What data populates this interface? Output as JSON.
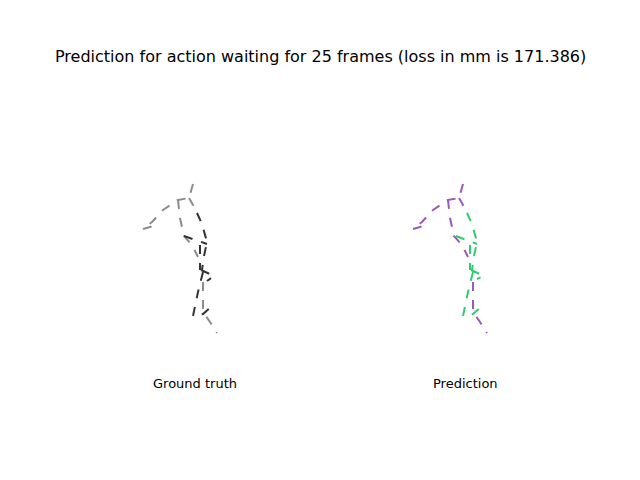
{
  "title": "Prediction for action waiting for 25 frames (loss in mm is 171.386)",
  "chart_data": [
    {
      "type": "line",
      "title": "Ground truth",
      "grid": false,
      "tick_labels": false,
      "xlim": [
        100,
        290
      ],
      "ylim": [
        345,
        170
      ],
      "series": [
        {
          "color": "#8c8c8c",
          "line_style": "dash",
          "x": [
            193,
            189,
            178,
            163,
            152,
            143,
            null,
            143,
            150,
            160,
            null,
            189,
            197,
            null,
            178,
            180,
            184,
            192,
            198,
            null,
            203,
            203,
            210,
            217
          ],
          "y": [
            184,
            198,
            200,
            210,
            222,
            229,
            null,
            229,
            227,
            223,
            null,
            198,
            212,
            null,
            200,
            218,
            236,
            245,
            257,
            null,
            282,
            312,
            322,
            333
          ]
        },
        {
          "color": "#333333",
          "line_style": "dash",
          "x": [
            197,
            202,
            207,
            204,
            202,
            null,
            184,
            207,
            null,
            201,
            214,
            207,
            null,
            203,
            198,
            193,
            203,
            212,
            null,
            200,
            200
          ],
          "y": [
            213,
            224,
            242,
            256,
            270,
            null,
            236,
            244,
            null,
            270,
            276,
            281,
            null,
            272,
            292,
            316,
            314,
            306,
            null,
            245,
            270
          ]
        }
      ]
    },
    {
      "type": "line",
      "title": "Prediction",
      "grid": false,
      "tick_labels": false,
      "xlim": [
        370,
        560
      ],
      "ylim": [
        345,
        170
      ],
      "series": [
        {
          "color": "#9b59b6",
          "line_style": "dash",
          "x": [
            463,
            459,
            448,
            433,
            422,
            413,
            null,
            413,
            420,
            430,
            null,
            459,
            467,
            null,
            448,
            450,
            454,
            462,
            468,
            null,
            473,
            473,
            480,
            487
          ],
          "y": [
            184,
            198,
            200,
            210,
            222,
            229,
            null,
            229,
            227,
            223,
            null,
            198,
            212,
            null,
            200,
            218,
            236,
            245,
            257,
            null,
            282,
            312,
            322,
            333
          ]
        },
        {
          "color": "#2ecc71",
          "line_style": "dash",
          "x": [
            467,
            472,
            477,
            474,
            472,
            null,
            456,
            477,
            null,
            471,
            484,
            477,
            null,
            473,
            468,
            463,
            473,
            482,
            null,
            470,
            470
          ],
          "y": [
            213,
            224,
            242,
            256,
            270,
            null,
            236,
            244,
            null,
            270,
            276,
            279,
            null,
            272,
            292,
            316,
            314,
            306,
            null,
            245,
            270
          ]
        }
      ]
    }
  ]
}
